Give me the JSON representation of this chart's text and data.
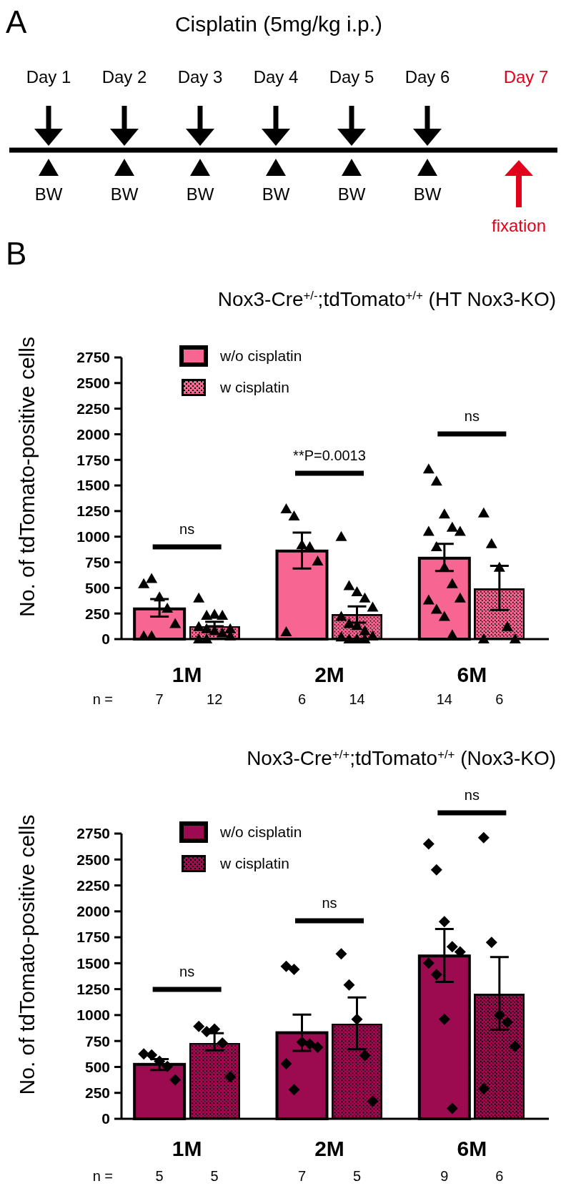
{
  "chart_data": [
    {
      "type": "other",
      "title": "Cisplatin (5mg/kg i.p.)",
      "annotations": [
        "A",
        "Day 1",
        "Day 2",
        "Day 3",
        "Day 4",
        "Day 5",
        "Day 6",
        "Day 7",
        "BW",
        "BW",
        "BW",
        "BW",
        "BW",
        "BW",
        "fixation"
      ]
    },
    {
      "type": "bar",
      "title": "Nox3-Cre$^{+/-}$;tdTomato$^{+/+}$ (HT Nox3-KO)",
      "ylabel": "No. of tdTomato-positive cells",
      "categories": [
        "1M",
        "2M",
        "6M"
      ],
      "ylim": [
        0,
        2750
      ],
      "yticks": [
        0,
        250,
        500,
        750,
        1000,
        1250,
        1500,
        1750,
        2000,
        2250,
        2500,
        2750
      ],
      "legend": "top left",
      "marker": "triangle",
      "series": [
        {
          "name": "w/o cisplatin",
          "color": "#f76592",
          "values": [
            295,
            860,
            790
          ],
          "errors": [
            [
              220,
              390
            ],
            [
              690,
              1040
            ],
            [
              665,
              930
            ]
          ]
        },
        {
          "name": "w cisplatin",
          "color": "#f76592",
          "values": [
            125,
            240,
            490
          ],
          "errors": [
            [
              125,
              170
            ],
            [
              160,
              320
            ],
            [
              285,
              715
            ]
          ]
        },
        {
          "type": "scatter",
          "color": "#000000",
          "x": [
            "1M",
            "1M",
            "1M",
            "1M",
            "1M",
            "1M",
            "1M",
            "2M",
            "2M",
            "2M",
            "2M",
            "2M",
            "2M",
            "6M",
            "6M",
            "6M",
            "6M",
            "6M",
            "6M",
            "6M",
            "6M",
            "6M",
            "6M",
            "6M",
            "6M",
            "6M",
            "6M"
          ],
          "values": [
            540,
            590,
            410,
            300,
            150,
            30,
            30,
            1270,
            1200,
            920,
            900,
            760,
            70,
            1660,
            1540,
            1220,
            1090,
            1050,
            1050,
            900,
            700,
            540,
            400,
            380,
            290,
            220,
            40
          ]
        },
        {
          "type": "scatter",
          "color": "#000000",
          "x": [
            "1M",
            "1M",
            "1M",
            "1M",
            "1M",
            "1M",
            "1M",
            "1M",
            "1M",
            "1M",
            "1M",
            "1M",
            "2M",
            "2M",
            "2M",
            "2M",
            "2M",
            "2M",
            "2M",
            "2M",
            "2M",
            "2M",
            "2M",
            "2M",
            "2M",
            "2M",
            "6M",
            "6M",
            "6M",
            "6M",
            "6M",
            "6M"
          ],
          "values": [
            400,
            230,
            240,
            230,
            100,
            120,
            100,
            80,
            60,
            30,
            0,
            0,
            1000,
            520,
            460,
            400,
            310,
            220,
            150,
            130,
            80,
            30,
            20,
            0,
            0,
            0,
            1230,
            930,
            700,
            120,
            0,
            0
          ]
        }
      ],
      "annotations": [
        "ns",
        "**P=0.0013",
        "ns",
        "n =",
        "7",
        "12",
        "6",
        "14",
        "14",
        "6",
        "B"
      ]
    },
    {
      "type": "bar",
      "title": "Nox3-Cre$^{+/+}$;tdTomato$^{+/+}$ (Nox3-KO)",
      "ylabel": "No. of tdTomato-positive cells",
      "categories": [
        "1M",
        "2M",
        "6M"
      ],
      "ylim": [
        0,
        2750
      ],
      "yticks": [
        0,
        250,
        500,
        750,
        1000,
        1250,
        1500,
        1750,
        2000,
        2250,
        2500,
        2750
      ],
      "legend": "top left",
      "marker": "diamond",
      "series": [
        {
          "name": "w/o cisplatin",
          "color": "#9c0a4f",
          "values": [
            525,
            830,
            1570
          ],
          "errors": [
            [
              470,
              575
            ],
            [
              655,
              1005
            ],
            [
              1320,
              1830
            ]
          ]
        },
        {
          "name": "w cisplatin",
          "color": "#9c0a4f",
          "values": [
            730,
            915,
            1200
          ],
          "errors": [
            [
              660,
              825
            ],
            [
              670,
              1170
            ],
            [
              860,
              1560
            ]
          ]
        },
        {
          "type": "scatter",
          "color": "#000000",
          "x": [
            "1M",
            "1M",
            "1M",
            "1M",
            "1M",
            "2M",
            "2M",
            "2M",
            "2M",
            "2M",
            "2M",
            "2M",
            "6M",
            "6M",
            "6M",
            "6M",
            "6M",
            "6M",
            "6M",
            "6M",
            "6M"
          ],
          "values": [
            625,
            615,
            555,
            505,
            375,
            1470,
            1440,
            740,
            720,
            690,
            530,
            280,
            2650,
            2400,
            1900,
            1660,
            1610,
            1500,
            1390,
            960,
            100
          ]
        },
        {
          "type": "scatter",
          "color": "#000000",
          "x": [
            "1M",
            "1M",
            "1M",
            "1M",
            "1M",
            "2M",
            "2M",
            "2M",
            "2M",
            "2M",
            "6M",
            "6M",
            "6M",
            "6M",
            "6M",
            "6M"
          ],
          "values": [
            890,
            840,
            865,
            730,
            405,
            1590,
            1290,
            960,
            610,
            170,
            2710,
            1700,
            1000,
            930,
            700,
            290
          ]
        }
      ],
      "annotations": [
        "ns",
        "ns",
        "ns",
        "n =",
        "5",
        "5",
        "7",
        "5",
        "9",
        "6"
      ]
    }
  ]
}
